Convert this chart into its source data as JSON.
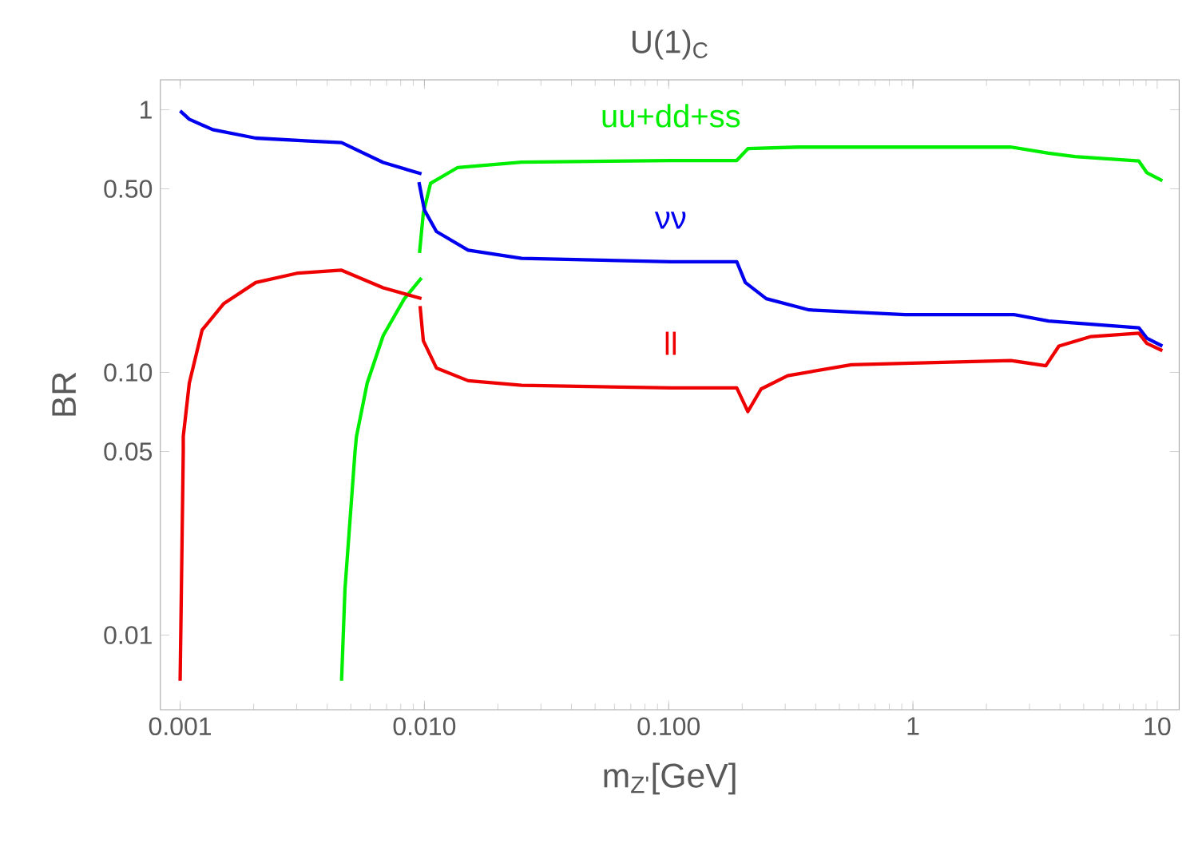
{
  "chart_data": {
    "type": "line",
    "title": "U(1)$_{C}$",
    "xlabel": "m$_{Z'}$[GeV]",
    "ylabel": "BR",
    "log": "xy",
    "xlim": [
      0.00083,
      12.3
    ],
    "ylim": [
      0.0052,
      1.3
    ],
    "xticks": [
      {
        "value": 0.001,
        "label": "0.001"
      },
      {
        "value": 0.01,
        "label": "0.010"
      },
      {
        "value": 0.1,
        "label": "0.100"
      },
      {
        "value": 1,
        "label": "1"
      },
      {
        "value": 10,
        "label": "10"
      }
    ],
    "yticks": [
      {
        "value": 0.01,
        "label": "0.01"
      },
      {
        "value": 0.05,
        "label": "0.05"
      },
      {
        "value": 0.1,
        "label": "0.10"
      },
      {
        "value": 0.5,
        "label": "0.50"
      },
      {
        "value": 1,
        "label": "1"
      }
    ],
    "series": [
      {
        "name": "uu+dd+ss",
        "color": "#00ee00",
        "x": [
          0.00458,
          0.00473,
          0.0052,
          0.00527,
          0.00583,
          0.00678,
          0.00828,
          0.00973,
          0.0096,
          0.00955,
          0.0099,
          0.0106,
          0.0137,
          0.025,
          0.102,
          0.19,
          0.211,
          0.339,
          2.52,
          3.59,
          4.6,
          8.41,
          9.07,
          10.5
        ],
        "values": [
          0.0067,
          0.015,
          0.05,
          0.057,
          0.091,
          0.138,
          0.191,
          0.229,
          null,
          0.285,
          0.405,
          0.525,
          0.603,
          0.632,
          0.641,
          0.641,
          0.711,
          0.721,
          0.721,
          0.684,
          0.663,
          0.638,
          0.576,
          0.537
        ]
      },
      {
        "name": "νν",
        "color": "#0000ee",
        "x": [
          0.001,
          0.00109,
          0.00136,
          0.00204,
          0.00336,
          0.00458,
          0.00678,
          0.00973,
          0.0096,
          0.0095,
          0.01,
          0.0112,
          0.0151,
          0.025,
          0.102,
          0.19,
          0.206,
          0.251,
          0.376,
          0.927,
          2.59,
          3.59,
          8.41,
          9.07,
          10.5
        ],
        "values": [
          0.99,
          0.92,
          0.84,
          0.78,
          0.76,
          0.75,
          0.63,
          0.57,
          null,
          0.53,
          0.415,
          0.344,
          0.292,
          0.272,
          0.264,
          0.264,
          0.22,
          0.191,
          0.173,
          0.166,
          0.166,
          0.157,
          0.148,
          0.135,
          0.126
        ]
      },
      {
        "name": "ll",
        "color": "#ee0000",
        "x": [
          0.001,
          0.00103,
          0.00103,
          0.00109,
          0.00123,
          0.00151,
          0.00204,
          0.00304,
          0.00458,
          0.00678,
          0.00973,
          0.0097,
          0.0096,
          0.0099,
          0.0112,
          0.0151,
          0.025,
          0.102,
          0.19,
          0.211,
          0.239,
          0.307,
          0.56,
          2.52,
          3.5,
          3.96,
          5.36,
          8.41,
          9.07,
          10.5
        ],
        "values": [
          0.0067,
          0.05,
          0.057,
          0.091,
          0.145,
          0.183,
          0.22,
          0.239,
          0.245,
          0.21,
          0.191,
          null,
          0.179,
          0.132,
          0.104,
          0.093,
          0.0894,
          0.0873,
          0.0873,
          0.071,
          0.0865,
          0.0972,
          0.107,
          0.111,
          0.106,
          0.126,
          0.137,
          0.141,
          0.129,
          0.121
        ]
      }
    ]
  }
}
